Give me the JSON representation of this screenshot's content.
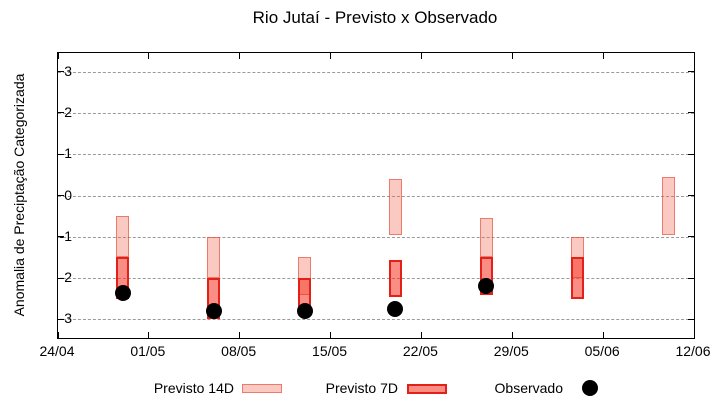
{
  "chart_data": {
    "type": "bar",
    "title": "Rio Jutaí - Previsto x Observado",
    "ylabel": "Anomalia de Preciptação Categorizada",
    "xlabel": "",
    "grid": true,
    "legend_position": "bottom",
    "ylim": [
      -3.45,
      3.45
    ],
    "xlim_days": [
      0,
      49
    ],
    "y_ticks": [
      3,
      2,
      1,
      0,
      -1,
      -2,
      -3
    ],
    "x_ticks": [
      {
        "day": 0,
        "label": "24/04"
      },
      {
        "day": 7,
        "label": "01/05"
      },
      {
        "day": 14,
        "label": "08/05"
      },
      {
        "day": 21,
        "label": "15/05"
      },
      {
        "day": 28,
        "label": "22/05"
      },
      {
        "day": 35,
        "label": "29/05"
      },
      {
        "day": 42,
        "label": "05/06"
      },
      {
        "day": 49,
        "label": "12/06"
      }
    ],
    "series": [
      {
        "name": "Previsto 14D",
        "kind": "range",
        "data": [
          {
            "date": "29/04",
            "day": 5,
            "low": -1.5,
            "high": -0.5
          },
          {
            "date": "06/05",
            "day": 12,
            "low": -2.0,
            "high": -1.0
          },
          {
            "date": "13/05",
            "day": 19,
            "low": -2.4,
            "high": -1.5
          },
          {
            "date": "20/05",
            "day": 26,
            "low": -0.95,
            "high": 0.4
          },
          {
            "date": "27/05",
            "day": 33,
            "low": -1.5,
            "high": -0.55
          },
          {
            "date": "03/06",
            "day": 40,
            "low": -2.0,
            "high": -1.0
          },
          {
            "date": "10/06",
            "day": 47,
            "low": -0.95,
            "high": 0.45
          }
        ]
      },
      {
        "name": "Previsto 7D",
        "kind": "range",
        "data": [
          {
            "date": "29/04",
            "day": 5,
            "low": -2.5,
            "high": -1.5
          },
          {
            "date": "06/05",
            "day": 12,
            "low": -3.0,
            "high": -2.0
          },
          {
            "date": "13/05",
            "day": 19,
            "low": -2.7,
            "high": -2.0
          },
          {
            "date": "20/05",
            "day": 26,
            "low": -2.45,
            "high": -1.55
          },
          {
            "date": "27/05",
            "day": 33,
            "low": -2.4,
            "high": -1.5
          },
          {
            "date": "03/06",
            "day": 40,
            "low": -2.5,
            "high": -1.5
          }
        ]
      },
      {
        "name": "Observado",
        "kind": "point",
        "data": [
          {
            "date": "29/04",
            "day": 5,
            "value": -2.35
          },
          {
            "date": "06/05",
            "day": 12,
            "value": -2.8
          },
          {
            "date": "13/05",
            "day": 19,
            "value": -2.8
          },
          {
            "date": "20/05",
            "day": 26,
            "value": -2.75
          },
          {
            "date": "27/05",
            "day": 33,
            "value": -2.2
          }
        ]
      }
    ],
    "colors": {
      "previsto14_fill": "rgba(240,100,80,0.35)",
      "previsto14_border": "rgba(230,70,50,0.6)",
      "previsto7_fill": "rgba(246,48,31,0.55)",
      "previsto7_border": "#e42119",
      "observado": "#000000",
      "grid": "#9a9a9a",
      "axis": "#000000"
    }
  }
}
